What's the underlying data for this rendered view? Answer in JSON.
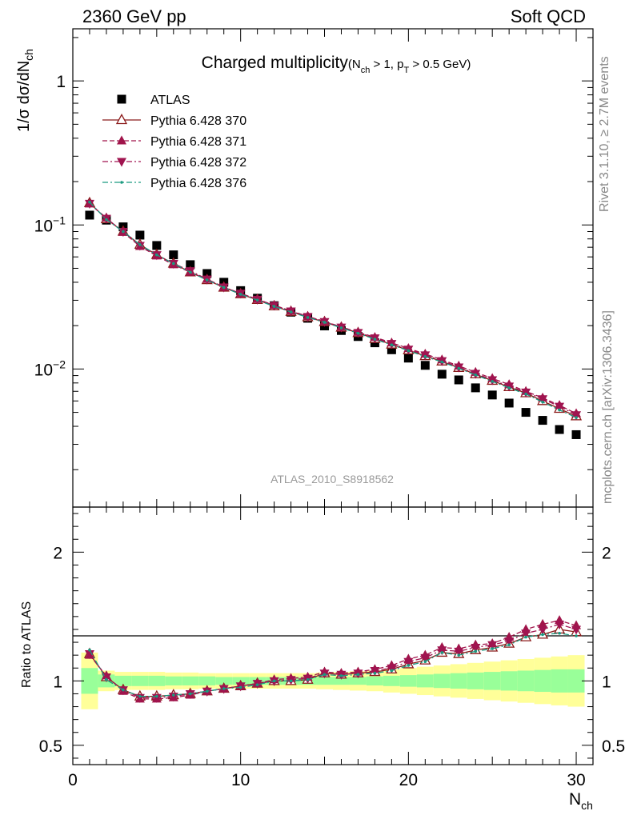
{
  "header": {
    "left": "2360 GeV pp",
    "right": "Soft QCD"
  },
  "side_labels": {
    "rivet": "Rivet 3.1.10, ≥ 2.7M events",
    "mcplots": "mcplots.cern.ch [arXiv:1306.3436]"
  },
  "analysis_label": "ATLAS_2010_S8918562",
  "chart_data": [
    {
      "type": "scatter",
      "panel": "main",
      "title_main": "Charged multiplicity",
      "title_sub_parts": [
        "(N",
        "ch",
        " > 1, p",
        "T",
        " > 0.5 GeV)"
      ],
      "ylabel_parts": [
        "1/σ dσ/dN",
        "ch"
      ],
      "xlabel_parts": [
        "N",
        "ch"
      ],
      "y_scale": "log",
      "xlim": [
        0,
        31
      ],
      "ylim": [
        0.0011,
        2.3
      ],
      "x_ticks": [
        0,
        10,
        20,
        30
      ],
      "y_tick_labels": [
        {
          "value": 1,
          "base": "1",
          "exp": ""
        },
        {
          "value": 0.1,
          "base": "10",
          "exp": "−1"
        },
        {
          "value": 0.01,
          "base": "10",
          "exp": "−2"
        }
      ],
      "legend_position": "top-left",
      "x": [
        1,
        2,
        3,
        4,
        5,
        6,
        7,
        8,
        9,
        10,
        11,
        12,
        13,
        14,
        15,
        16,
        17,
        18,
        19,
        20,
        21,
        22,
        23,
        24,
        25,
        26,
        27,
        28,
        29,
        30
      ],
      "series": [
        {
          "name": "ATLAS",
          "color": "#000000",
          "marker": "square",
          "values": [
            0.117,
            0.108,
            0.097,
            0.085,
            0.072,
            0.062,
            0.053,
            0.046,
            0.04,
            0.035,
            0.031,
            0.0275,
            0.0248,
            0.0225,
            0.0199,
            0.0185,
            0.0168,
            0.0152,
            0.0136,
            0.0119,
            0.0106,
            0.0092,
            0.0084,
            0.0074,
            0.0066,
            0.0058,
            0.005,
            0.0044,
            0.0038,
            0.0035
          ]
        },
        {
          "name": "Pythia 6.428 370",
          "color": "#8b1a1a",
          "marker": "open-triangle-up",
          "line": "solid",
          "values": [
            0.142,
            0.11,
            0.09,
            0.073,
            0.062,
            0.054,
            0.047,
            0.0415,
            0.0368,
            0.0331,
            0.0302,
            0.0273,
            0.025,
            0.0229,
            0.0212,
            0.0194,
            0.0178,
            0.0162,
            0.0148,
            0.0135,
            0.0123,
            0.0113,
            0.0102,
            0.0092,
            0.0083,
            0.0075,
            0.0068,
            0.006,
            0.0053,
            0.0047
          ]
        },
        {
          "name": "Pythia 6.428 371",
          "color": "#a0144a",
          "marker": "filled-triangle-up",
          "line": "dashed",
          "values": [
            0.14,
            0.112,
            0.089,
            0.071,
            0.061,
            0.053,
            0.047,
            0.042,
            0.037,
            0.0334,
            0.0305,
            0.0277,
            0.0253,
            0.0232,
            0.0214,
            0.0196,
            0.018,
            0.0166,
            0.0152,
            0.0139,
            0.0127,
            0.0116,
            0.0105,
            0.0095,
            0.0086,
            0.0078,
            0.007,
            0.0063,
            0.0056,
            0.0049
          ]
        },
        {
          "name": "Pythia 6.428 372",
          "color": "#a01450",
          "marker": "filled-triangle-down",
          "line": "dashdot",
          "values": [
            0.141,
            0.111,
            0.09,
            0.072,
            0.062,
            0.054,
            0.048,
            0.042,
            0.037,
            0.0335,
            0.0304,
            0.0276,
            0.0252,
            0.0231,
            0.0213,
            0.0195,
            0.0179,
            0.0164,
            0.015,
            0.0137,
            0.0125,
            0.0114,
            0.0103,
            0.0093,
            0.0084,
            0.0076,
            0.0069,
            0.0062,
            0.0055,
            0.0048
          ]
        },
        {
          "name": "Pythia 6.428 376",
          "color": "#1a9a80",
          "marker": "dot",
          "line": "dashdot",
          "values": [
            0.144,
            0.109,
            0.09,
            0.073,
            0.062,
            0.054,
            0.047,
            0.0415,
            0.0368,
            0.033,
            0.0301,
            0.0272,
            0.0249,
            0.0228,
            0.0211,
            0.0193,
            0.0177,
            0.0161,
            0.0147,
            0.0134,
            0.0122,
            0.0112,
            0.0101,
            0.0091,
            0.0082,
            0.0074,
            0.0067,
            0.0059,
            0.0052,
            0.0046
          ]
        }
      ]
    },
    {
      "type": "line",
      "panel": "ratio",
      "ylabel": "Ratio to ATLAS",
      "xlabel_parts": [
        "N",
        "ch"
      ],
      "xlim": [
        0,
        31
      ],
      "ylim": [
        0.35,
        2.35
      ],
      "x_ticks": [
        0,
        10,
        20,
        30
      ],
      "y_tick_labels": [
        {
          "value": 2,
          "label": "2"
        },
        {
          "value": 1,
          "label": "1"
        },
        {
          "value": 0.5,
          "label": "0.5"
        }
      ],
      "band_colors": {
        "inner": "#99ff99",
        "outer": "#ffff99"
      },
      "band_inner_halfwidth": [
        0.1,
        0.05,
        0.04,
        0.04,
        0.04,
        0.035,
        0.035,
        0.035,
        0.03,
        0.03,
        0.03,
        0.03,
        0.03,
        0.03,
        0.03,
        0.03,
        0.03,
        0.035,
        0.04,
        0.045,
        0.05,
        0.055,
        0.06,
        0.065,
        0.07,
        0.075,
        0.08,
        0.085,
        0.09,
        0.09
      ],
      "band_outer_halfwidth": [
        0.22,
        0.08,
        0.07,
        0.07,
        0.07,
        0.065,
        0.065,
        0.06,
        0.06,
        0.06,
        0.06,
        0.06,
        0.06,
        0.06,
        0.065,
        0.07,
        0.075,
        0.08,
        0.09,
        0.1,
        0.11,
        0.12,
        0.13,
        0.14,
        0.15,
        0.16,
        0.17,
        0.18,
        0.19,
        0.2
      ],
      "x": [
        1,
        2,
        3,
        4,
        5,
        6,
        7,
        8,
        9,
        10,
        11,
        12,
        13,
        14,
        15,
        16,
        17,
        18,
        19,
        20,
        21,
        22,
        23,
        24,
        25,
        26,
        27,
        28,
        29,
        30
      ],
      "series": [
        {
          "name": "Pythia 6.428 370",
          "color": "#8b1a1a",
          "marker": "open-triangle-up",
          "line": "solid",
          "values": [
            1.21,
            1.03,
            0.93,
            0.88,
            0.88,
            0.89,
            0.9,
            0.92,
            0.94,
            0.96,
            0.98,
            1.0,
            1.0,
            1.01,
            1.06,
            1.05,
            1.06,
            1.07,
            1.09,
            1.13,
            1.16,
            1.22,
            1.21,
            1.24,
            1.26,
            1.29,
            1.34,
            1.36,
            1.4,
            1.38
          ]
        },
        {
          "name": "Pythia 6.428 371",
          "color": "#a0144a",
          "marker": "filled-triangle-up",
          "line": "dashed",
          "values": [
            1.2,
            1.04,
            0.92,
            0.86,
            0.86,
            0.87,
            0.89,
            0.92,
            0.94,
            0.96,
            0.98,
            1.01,
            1.02,
            1.03,
            1.07,
            1.06,
            1.07,
            1.09,
            1.12,
            1.17,
            1.2,
            1.26,
            1.25,
            1.28,
            1.29,
            1.34,
            1.4,
            1.44,
            1.47,
            1.43
          ]
        },
        {
          "name": "Pythia 6.428 372",
          "color": "#a01450",
          "marker": "filled-triangle-down",
          "line": "dashdot",
          "values": [
            1.21,
            1.03,
            0.93,
            0.87,
            0.87,
            0.88,
            0.9,
            0.92,
            0.94,
            0.96,
            0.98,
            1.0,
            1.01,
            1.02,
            1.06,
            1.05,
            1.06,
            1.08,
            1.1,
            1.15,
            1.18,
            1.24,
            1.23,
            1.26,
            1.28,
            1.31,
            1.37,
            1.4,
            1.44,
            1.4
          ]
        },
        {
          "name": "Pythia 6.428 376",
          "color": "#1a9a80",
          "marker": "dot",
          "line": "dashdot",
          "values": [
            1.24,
            1.01,
            0.93,
            0.88,
            0.88,
            0.89,
            0.9,
            0.92,
            0.94,
            0.95,
            0.97,
            1.0,
            1.0,
            1.01,
            1.05,
            1.04,
            1.05,
            1.06,
            1.08,
            1.12,
            1.15,
            1.22,
            1.2,
            1.23,
            1.25,
            1.28,
            1.34,
            1.36,
            1.37,
            1.35
          ]
        }
      ]
    }
  ]
}
